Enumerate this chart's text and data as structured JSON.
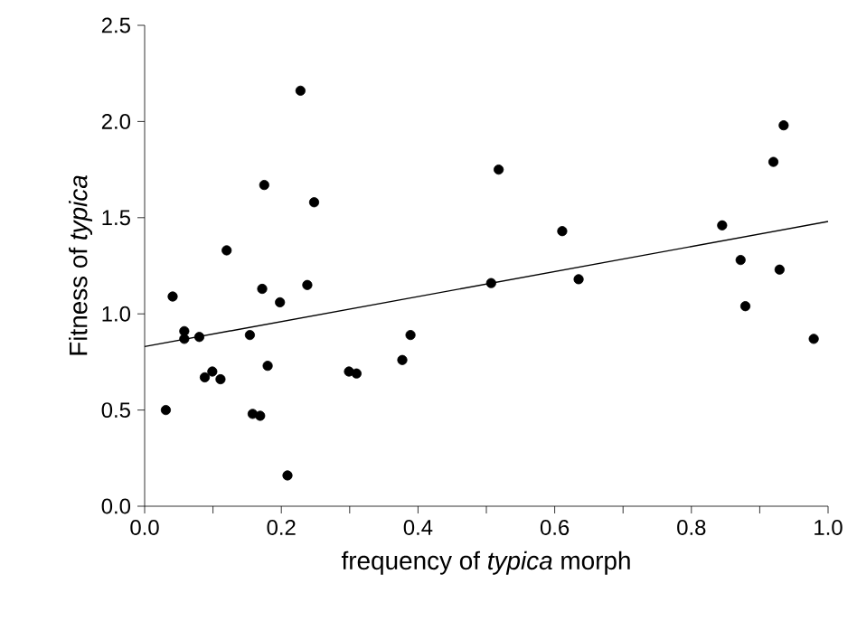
{
  "chart_data": {
    "type": "scatter",
    "xlabel": "frequency of *typica* morph",
    "ylabel": "Fitness of *typica*",
    "xlim": [
      0,
      1
    ],
    "ylim": [
      0,
      2.5
    ],
    "xticks": [
      {
        "value": 0,
        "label": "0.0"
      },
      {
        "value": 0.1,
        "label": null
      },
      {
        "value": 0.2,
        "label": "0.2"
      },
      {
        "value": 0.3,
        "label": null
      },
      {
        "value": 0.4,
        "label": "0.4"
      },
      {
        "value": 0.5,
        "label": null
      },
      {
        "value": 0.6,
        "label": "0.6"
      },
      {
        "value": 0.7,
        "label": null
      },
      {
        "value": 0.8,
        "label": "0.8"
      },
      {
        "value": 0.9,
        "label": null
      },
      {
        "value": 1,
        "label": "1.0"
      }
    ],
    "yticks": [
      {
        "value": 0,
        "label": "0.0"
      },
      {
        "value": 0.5,
        "label": "0.5"
      },
      {
        "value": 1,
        "label": "1.0"
      },
      {
        "value": 1.5,
        "label": "1.5"
      },
      {
        "value": 2,
        "label": "2.0"
      },
      {
        "value": 2.5,
        "label": "2.5"
      }
    ],
    "series": [
      {
        "marker": "circle",
        "color": "#000000",
        "x": [
          0.031,
          0.041,
          0.058,
          0.058,
          0.08,
          0.088,
          0.099,
          0.111,
          0.12,
          0.154,
          0.158,
          0.169,
          0.172,
          0.175,
          0.18,
          0.198,
          0.209,
          0.228,
          0.238,
          0.248,
          0.299,
          0.31,
          0.377,
          0.389,
          0.507,
          0.518,
          0.611,
          0.635,
          0.845,
          0.872,
          0.879,
          0.92,
          0.929,
          0.935,
          0.979
        ],
        "values": [
          0.5,
          1.09,
          0.91,
          0.87,
          0.88,
          0.67,
          0.7,
          0.66,
          1.33,
          0.89,
          0.48,
          0.47,
          1.13,
          1.67,
          0.73,
          1.06,
          0.16,
          2.16,
          1.15,
          1.58,
          0.7,
          0.69,
          0.76,
          0.89,
          1.16,
          1.75,
          1.43,
          1.18,
          1.46,
          1.28,
          1.04,
          1.79,
          1.23,
          1.98,
          0.87
        ]
      },
      {
        "type": "line",
        "marker": "none",
        "color": "#000000",
        "x": [
          0,
          1
        ],
        "values": [
          0.83,
          1.48
        ]
      }
    ]
  }
}
